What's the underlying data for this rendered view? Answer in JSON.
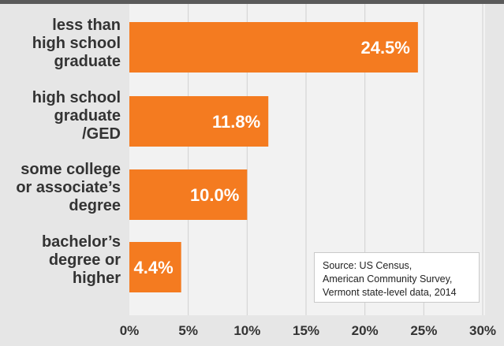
{
  "chart_data": {
    "type": "bar",
    "orientation": "horizontal",
    "categories": [
      [
        "less than",
        "high school",
        "graduate"
      ],
      [
        "high school",
        "graduate",
        "/GED"
      ],
      [
        "some college",
        "or associate’s",
        "degree"
      ],
      [
        "bachelor’s",
        "degree or",
        "higher"
      ]
    ],
    "values": [
      24.5,
      11.8,
      10.0,
      4.4
    ],
    "value_labels": [
      "24.5%",
      "11.8%",
      "10.0%",
      "4.4%"
    ],
    "x_ticks": [
      0,
      5,
      10,
      15,
      20,
      25,
      30
    ],
    "x_tick_labels": [
      "0%",
      "5%",
      "10%",
      "15%",
      "20%",
      "25%",
      "30%"
    ],
    "xlim": [
      0,
      30
    ],
    "grid": true,
    "title": "",
    "xlabel": "",
    "ylabel": "",
    "colors": {
      "bar": "#f47b20",
      "bar_label": "#ffffff",
      "gridline": "#d0d0d0",
      "text": "#333333"
    }
  },
  "source_note": {
    "lines": [
      "Source: US Census,",
      "American Community Survey,",
      "Vermont state-level data, 2014"
    ]
  }
}
